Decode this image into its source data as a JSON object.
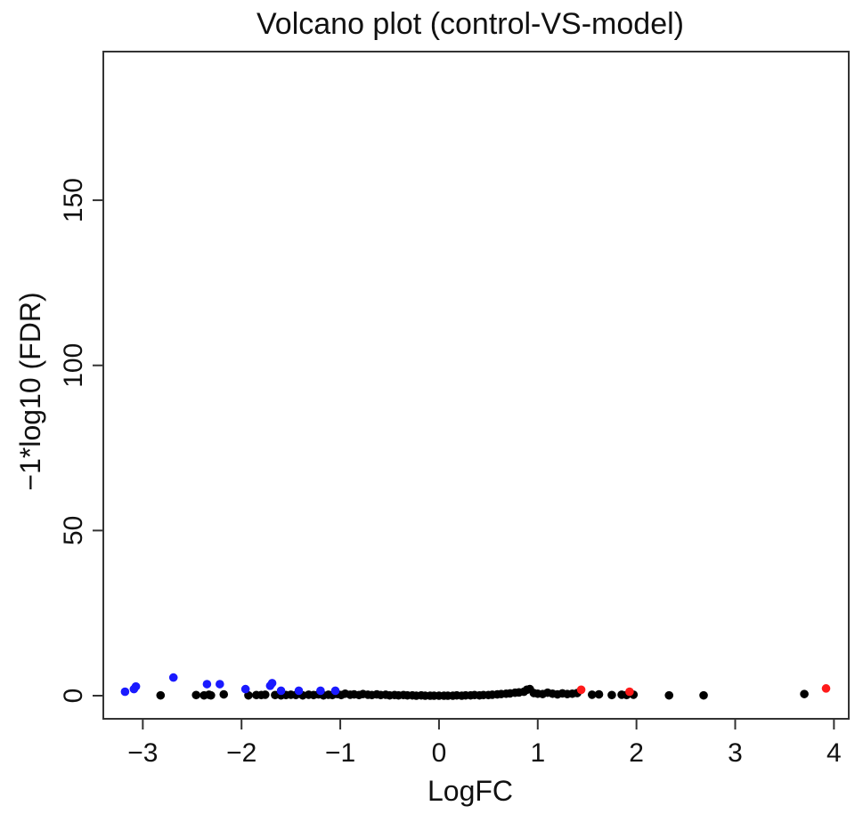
{
  "chart_data": {
    "type": "scatter",
    "title": "Volcano plot (control-VS-model)",
    "xlabel": "LogFC",
    "ylabel": "−1*log10 (FDR)",
    "xlim": [
      -3.4,
      4.15
    ],
    "ylim": [
      -7,
      195
    ],
    "xticks": [
      -3,
      -2,
      -1,
      0,
      1,
      2,
      3,
      4
    ],
    "xtick_labels": [
      "−3",
      "−2",
      "−1",
      "0",
      "1",
      "2",
      "3",
      "4"
    ],
    "yticks": [
      0,
      50,
      100,
      150
    ],
    "ytick_labels": [
      "0",
      "50",
      "100",
      "150"
    ],
    "grid": false,
    "legend": "none",
    "colors": {
      "down": "#1a1aff",
      "up": "#ff1a1a",
      "ns": "#000000"
    },
    "series": [
      {
        "key": "down",
        "points": [
          [
            -3.18,
            1.2
          ],
          [
            -3.09,
            2.0
          ],
          [
            -3.07,
            2.8
          ],
          [
            -2.69,
            5.5
          ],
          [
            -2.35,
            3.5
          ],
          [
            -2.22,
            3.5
          ],
          [
            -1.96,
            2.0
          ],
          [
            -1.71,
            3.0
          ],
          [
            -1.69,
            3.8
          ],
          [
            -1.6,
            1.5
          ],
          [
            -1.42,
            1.5
          ],
          [
            -1.2,
            1.5
          ],
          [
            -1.05,
            1.5
          ]
        ]
      },
      {
        "key": "up",
        "points": [
          [
            1.44,
            1.8
          ],
          [
            1.93,
            1.2
          ],
          [
            3.92,
            2.2
          ]
        ]
      },
      {
        "key": "ns",
        "points": [
          [
            -2.82,
            0.1
          ],
          [
            -2.46,
            0.2
          ],
          [
            -2.38,
            0.1
          ],
          [
            -2.33,
            0.3
          ],
          [
            -2.31,
            0.1
          ],
          [
            -2.18,
            0.4
          ],
          [
            -1.93,
            0.1
          ],
          [
            -1.85,
            0.2
          ],
          [
            -1.8,
            0.2
          ],
          [
            -1.76,
            0.3
          ],
          [
            -1.66,
            0.2
          ],
          [
            -1.6,
            0.1
          ],
          [
            -1.55,
            0.2
          ],
          [
            -1.5,
            0.3
          ],
          [
            -1.45,
            0.2
          ],
          [
            -1.38,
            0.1
          ],
          [
            -1.32,
            0.3
          ],
          [
            -1.27,
            0.2
          ],
          [
            -1.22,
            0.4
          ],
          [
            -1.17,
            0.1
          ],
          [
            -1.12,
            0.3
          ],
          [
            -1.08,
            0.2
          ],
          [
            -1.03,
            0.5
          ],
          [
            -0.99,
            0.2
          ],
          [
            -0.95,
            0.6
          ],
          [
            -0.9,
            0.3
          ],
          [
            -0.86,
            0.4
          ],
          [
            -0.81,
            0.2
          ],
          [
            -0.77,
            0.5
          ],
          [
            -0.72,
            0.3
          ],
          [
            -0.68,
            0.2
          ],
          [
            -0.63,
            0.4
          ],
          [
            -0.59,
            0.2
          ],
          [
            -0.54,
            0.3
          ],
          [
            -0.5,
            0.1
          ],
          [
            -0.45,
            0.2
          ],
          [
            -0.41,
            0.1
          ],
          [
            -0.36,
            0.2
          ],
          [
            -0.32,
            0.1
          ],
          [
            -0.27,
            0.1
          ],
          [
            -0.23,
            0.0
          ],
          [
            -0.18,
            0.1
          ],
          [
            -0.14,
            0.0
          ],
          [
            -0.09,
            0.0
          ],
          [
            -0.05,
            0.0
          ],
          [
            0.0,
            0.0
          ],
          [
            0.05,
            0.0
          ],
          [
            0.09,
            0.0
          ],
          [
            0.14,
            0.0
          ],
          [
            0.18,
            0.1
          ],
          [
            0.23,
            0.0
          ],
          [
            0.27,
            0.1
          ],
          [
            0.32,
            0.1
          ],
          [
            0.36,
            0.2
          ],
          [
            0.41,
            0.1
          ],
          [
            0.45,
            0.2
          ],
          [
            0.5,
            0.2
          ],
          [
            0.54,
            0.3
          ],
          [
            0.59,
            0.4
          ],
          [
            0.63,
            0.5
          ],
          [
            0.68,
            0.6
          ],
          [
            0.72,
            0.7
          ],
          [
            0.77,
            0.9
          ],
          [
            0.81,
            1.0
          ],
          [
            0.86,
            1.2
          ],
          [
            0.89,
            1.8
          ],
          [
            0.92,
            2.0
          ],
          [
            0.96,
            0.8
          ],
          [
            1.0,
            0.6
          ],
          [
            1.05,
            0.5
          ],
          [
            1.1,
            0.9
          ],
          [
            1.15,
            0.6
          ],
          [
            1.2,
            0.4
          ],
          [
            1.25,
            0.7
          ],
          [
            1.3,
            0.5
          ],
          [
            1.35,
            0.6
          ],
          [
            1.4,
            0.8
          ],
          [
            1.55,
            0.3
          ],
          [
            1.62,
            0.4
          ],
          [
            1.75,
            0.2
          ],
          [
            1.85,
            0.3
          ],
          [
            1.9,
            0.2
          ],
          [
            1.97,
            0.3
          ],
          [
            2.33,
            0.1
          ],
          [
            2.68,
            0.1
          ],
          [
            3.7,
            0.5
          ]
        ]
      }
    ]
  }
}
